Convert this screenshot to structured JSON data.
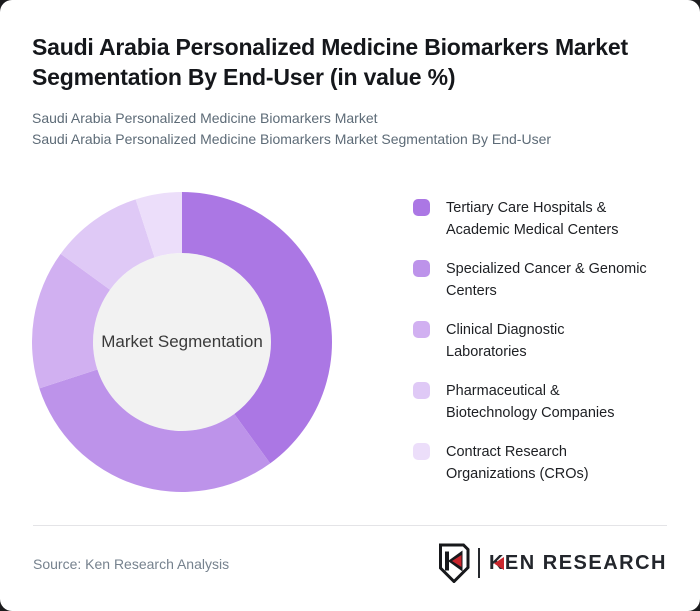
{
  "header": {
    "title": "Saudi Arabia Personalized Medicine Biomarkers Market Segmentation By End-User (in value %)",
    "subtitle_line1": "Saudi Arabia Personalized Medicine Biomarkers Market",
    "subtitle_line2": "Saudi Arabia Personalized Medicine Biomarkers Market Segmentation By End-User"
  },
  "chart_data": {
    "type": "pie",
    "donut": true,
    "title": "Saudi Arabia Personalized Medicine Biomarkers Market Segmentation By End-User (in value %)",
    "unit": "value %",
    "center_label": "Market Segmentation",
    "legend_position": "right",
    "inner_hole_color": "#f2f2f2",
    "segments": [
      {
        "label": "Tertiary Care Hospitals & Academic Medical Centers",
        "label_lines": [
          "Tertiary Care Hospitals &",
          "Academic Medical Centers"
        ],
        "value": 40,
        "color": "#ab77e4"
      },
      {
        "label": "Specialized Cancer & Genomic Centers",
        "label_lines": [
          "Specialized Cancer & Genomic",
          "Centers"
        ],
        "value": 30,
        "color": "#bd93ea"
      },
      {
        "label": "Clinical Diagnostic Laboratories",
        "label_lines": [
          "Clinical Diagnostic",
          "Laboratories"
        ],
        "value": 15,
        "color": "#d1b0f1"
      },
      {
        "label": "Pharmaceutical & Biotechnology Companies",
        "label_lines": [
          "Pharmaceutical &",
          "Biotechnology Companies"
        ],
        "value": 10,
        "color": "#dfc9f6"
      },
      {
        "label": "Contract Research Organizations (CROs)",
        "label_lines": [
          "Contract Research",
          "Organizations (CROs)"
        ],
        "value": 5,
        "color": "#ecdefa"
      }
    ]
  },
  "footer": {
    "source": "Source: Ken Research Analysis",
    "logo_text": "KEN RESEARCH"
  },
  "colors": {
    "accent_dark": "#ab77e4",
    "logo_dark": "#23262c",
    "logo_red": "#c9252c",
    "title_text": "#15171b",
    "subtitle_text": "#5d6b77",
    "source_text": "#76828e"
  }
}
